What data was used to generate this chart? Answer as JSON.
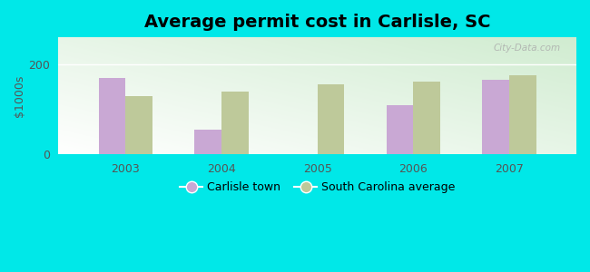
{
  "title": "Average permit cost in Carlisle, SC",
  "years": [
    2003,
    2004,
    2005,
    2006,
    2007
  ],
  "carlisle_values": [
    170,
    55,
    0,
    110,
    165
  ],
  "sc_avg_values": [
    130,
    140,
    155,
    162,
    175
  ],
  "carlisle_color": "#c9a8d4",
  "sc_avg_color": "#bec99a",
  "bar_width": 0.28,
  "ylim": [
    0,
    260
  ],
  "yticks": [
    0,
    200
  ],
  "ylabel": "$1000s",
  "background_outer": "#00e8e8",
  "legend_carlisle": "Carlisle town",
  "legend_sc": "South Carolina average",
  "title_fontsize": 14,
  "axis_fontsize": 9,
  "tick_fontsize": 9,
  "watermark": "City-Data.com"
}
